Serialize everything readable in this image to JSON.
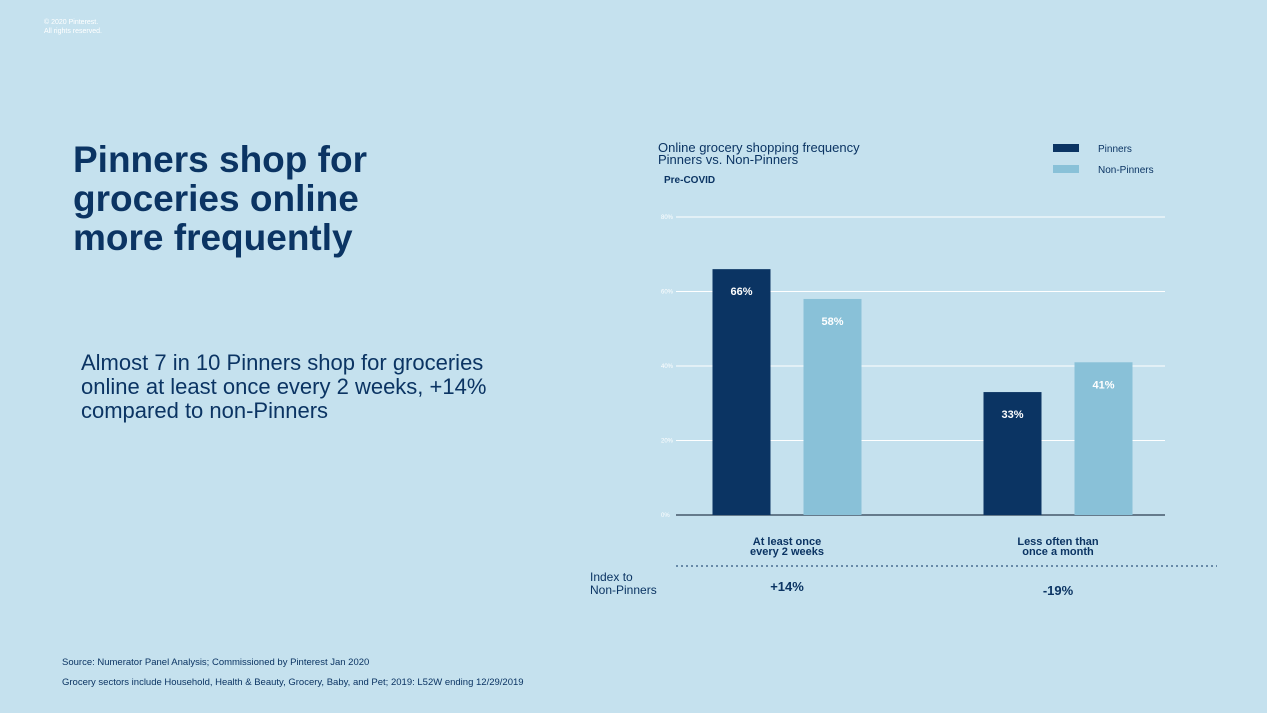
{
  "copyright": {
    "line1": "© 2020 Pinterest.",
    "line2": "All rights reserved."
  },
  "headline": "Pinners shop for groceries online more frequently",
  "body_text": "Almost 7 in 10 Pinners shop for groceries online at least once every 2 weeks, +14% compared to non-Pinners",
  "footnotes": {
    "source": "Source: Numerator Panel Analysis; Commissioned by Pinterest Jan 2020",
    "note": "Grocery sectors include Household, Health & Beauty, Grocery, Baby, and Pet; 2019: L52W ending 12/29/2019"
  },
  "colors": {
    "pinners": "#0b3463",
    "non_pinners": "#89c1d8",
    "background": "#c5e1ee"
  },
  "chart_data": {
    "type": "bar",
    "title": "Online grocery shopping frequency",
    "subtitle_line": "Pinners vs. Non-Pinners",
    "period_label": "Pre-COVID",
    "categories": [
      {
        "line1": "At least once",
        "line2": "every 2 weeks"
      },
      {
        "line1": "Less often than",
        "line2": "once a month"
      }
    ],
    "series": [
      {
        "name": "Pinners",
        "values": [
          66,
          33
        ],
        "labels": [
          "66%",
          "33%"
        ]
      },
      {
        "name": "Non-Pinners",
        "values": [
          58,
          41
        ],
        "labels": [
          "58%",
          "41%"
        ]
      }
    ],
    "yticks": [
      {
        "value": 0,
        "label": "0%"
      },
      {
        "value": 20,
        "label": "20%"
      },
      {
        "value": 40,
        "label": "40%"
      },
      {
        "value": 60,
        "label": "60%"
      },
      {
        "value": 80,
        "label": "80%"
      }
    ],
    "ylim": [
      0,
      80
    ],
    "index_label": {
      "line1": "Index to",
      "line2": "Non-Pinners"
    },
    "index_values": [
      "+14%",
      "-19%"
    ]
  }
}
